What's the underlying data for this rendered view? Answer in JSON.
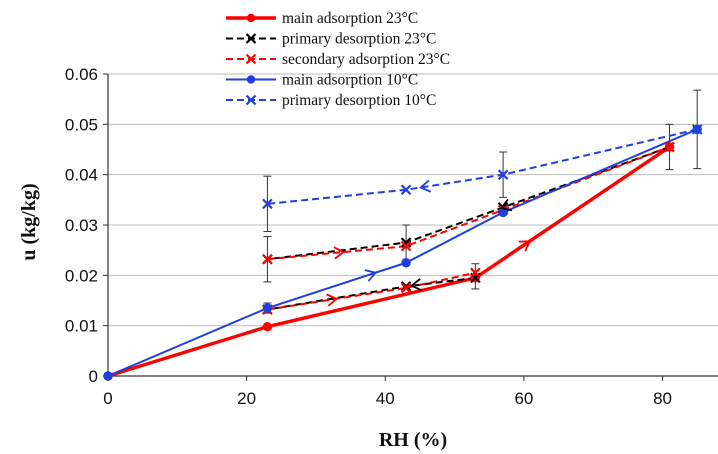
{
  "chart_data": {
    "type": "line",
    "title": "",
    "xlabel": "RH (%)",
    "ylabel": "u (kg/kg)",
    "xlim": [
      0,
      88
    ],
    "ylim": [
      0,
      0.06
    ],
    "xticks": [
      0,
      20,
      40,
      60,
      80
    ],
    "xtick_labels": [
      "0",
      "20",
      "40",
      "60",
      "80"
    ],
    "yticks": [
      0,
      0.01,
      0.02,
      0.03,
      0.04,
      0.05,
      0.06
    ],
    "ytick_labels": [
      "0",
      "0.01",
      "0.02",
      "0.03",
      "0.04",
      "0.05",
      "0.06"
    ],
    "grid": "horizontal",
    "legend_position": "top-center",
    "series": [
      {
        "name": "main adsorption 23°C",
        "color": "#ff0000",
        "line_style": "solid",
        "line_weight": "thick",
        "marker": "circle",
        "x": [
          0,
          23,
          53,
          81
        ],
        "y": [
          0,
          0.0098,
          0.0195,
          0.0455
        ],
        "direction": "increasing RH"
      },
      {
        "name": "primary desorption 23°C",
        "color": "#000000",
        "line_style": "dashed",
        "marker": "x",
        "x": [
          81,
          57,
          43,
          23
        ],
        "y": [
          0.0455,
          0.0335,
          0.0265,
          0.0232
        ],
        "direction": "decreasing RH",
        "extra_branch": {
          "x": [
            53,
            43,
            23
          ],
          "y": [
            0.0195,
            0.0178,
            0.0132
          ]
        }
      },
      {
        "name": "secondary adsorption 23°C",
        "color": "#ff0000",
        "line_style": "dashed",
        "marker": "x",
        "x": [
          23,
          43,
          57,
          81
        ],
        "y": [
          0.0232,
          0.0258,
          0.033,
          0.0455
        ],
        "direction": "increasing RH",
        "extra_branch": {
          "x": [
            23,
            43,
            53
          ],
          "y": [
            0.0132,
            0.0175,
            0.0205
          ]
        }
      },
      {
        "name": "main adsorption 10°C",
        "color": "#1f3fe0",
        "line_style": "solid",
        "marker": "circle",
        "x": [
          0,
          23,
          43,
          57,
          85
        ],
        "y": [
          0,
          0.0135,
          0.0225,
          0.0325,
          0.049
        ],
        "direction": "increasing RH",
        "error_bars": {
          "x": [
            23
          ],
          "y": [
            0.0135
          ],
          "err": [
            0.001
          ]
        }
      },
      {
        "name": "primary desorption 10°C",
        "color": "#1f3fe0",
        "line_style": "dashed",
        "marker": "x",
        "x": [
          85,
          57,
          43,
          23
        ],
        "y": [
          0.049,
          0.04,
          0.037,
          0.0342
        ],
        "direction": "decreasing RH",
        "error_bars": {
          "x": [
            23,
            57,
            85
          ],
          "y": [
            0.0342,
            0.04,
            0.049
          ],
          "err": [
            0.0055,
            0.0045,
            0.0078
          ]
        }
      }
    ],
    "extra_error_bars": [
      {
        "x": 23,
        "y": 0.0232,
        "err": 0.0045
      },
      {
        "x": 43,
        "y": 0.0262,
        "err": 0.0038
      },
      {
        "x": 53,
        "y": 0.0198,
        "err": 0.0025
      },
      {
        "x": 81,
        "y": 0.0455,
        "err": 0.0045
      }
    ]
  }
}
